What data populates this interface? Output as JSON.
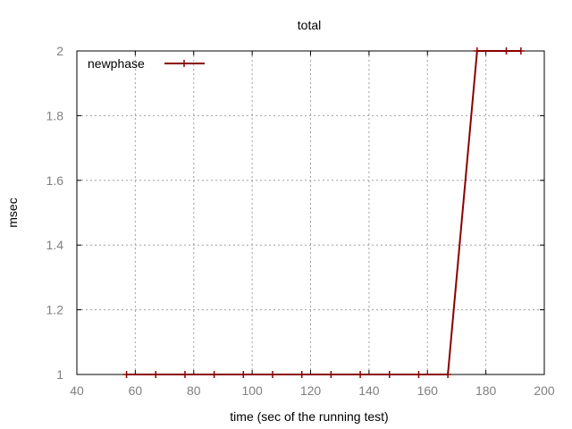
{
  "chart_data": {
    "type": "line",
    "title": "total",
    "xlabel": "time (sec of the running test)",
    "ylabel": "msec",
    "xlim": [
      40,
      200
    ],
    "ylim": [
      1,
      2
    ],
    "xticks": [
      40,
      60,
      80,
      100,
      120,
      140,
      160,
      180,
      200
    ],
    "yticks": [
      1,
      1.2,
      1.4,
      1.6,
      1.8,
      2
    ],
    "ytick_labels": [
      "1",
      "1.2",
      "1.4",
      "1.6",
      "1.8",
      "2"
    ],
    "grid": true,
    "legend_position": "top-left",
    "series": [
      {
        "name": "newphase",
        "color": "#8b0000",
        "marker": "plus",
        "x": [
          57,
          67,
          77,
          87,
          97,
          107,
          117,
          127,
          137,
          147,
          157,
          167,
          177,
          187,
          192
        ],
        "y": [
          1,
          1,
          1,
          1,
          1,
          1,
          1,
          1,
          1,
          1,
          1,
          1,
          2,
          2,
          2
        ]
      }
    ]
  }
}
